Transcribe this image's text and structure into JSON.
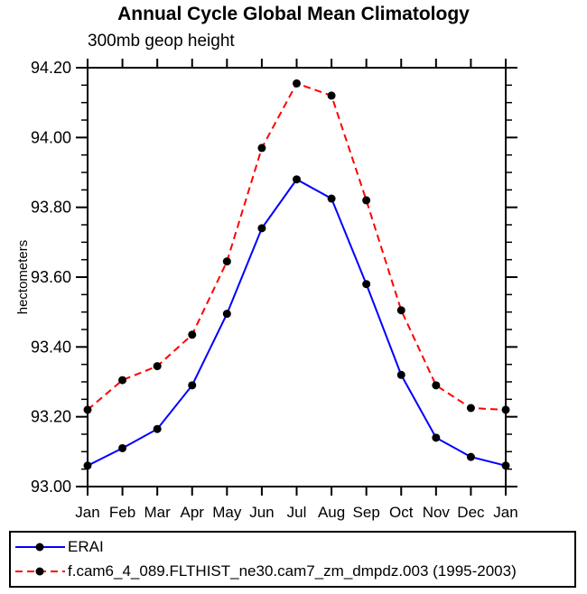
{
  "chart_data": {
    "type": "line",
    "title": "Annual Cycle Global Mean Climatology",
    "subtitle": "300mb geop height",
    "ylabel": "hectometers",
    "xlabel": "",
    "categories": [
      "Jan",
      "Feb",
      "Mar",
      "Apr",
      "May",
      "Jun",
      "Jul",
      "Aug",
      "Sep",
      "Oct",
      "Nov",
      "Dec",
      "Jan"
    ],
    "ylim": [
      93.0,
      94.2
    ],
    "ytick_step": 0.2,
    "yminor_step": 0.05,
    "ytick_labels": [
      "93.00",
      "93.20",
      "93.40",
      "93.60",
      "93.80",
      "94.00",
      "94.20"
    ],
    "grid": false,
    "legend_position": "bottom-box",
    "axis_color": "#000000",
    "marker": {
      "shape": "filled-circle",
      "color": "#000000",
      "radius": 4.5
    },
    "series": [
      {
        "name": "ERAI",
        "color": "#0000ff",
        "line_style": "solid",
        "values": [
          93.06,
          93.11,
          93.165,
          93.29,
          93.495,
          93.74,
          93.88,
          93.825,
          93.58,
          93.32,
          93.14,
          93.085,
          93.06
        ]
      },
      {
        "name": "f.cam6_4_089.FLTHIST_ne30.cam7_zm_dmpdz.003 (1995-2003)",
        "color": "#ff0000",
        "line_style": "dashed",
        "values": [
          93.22,
          93.305,
          93.345,
          93.435,
          93.645,
          93.97,
          94.155,
          94.12,
          93.82,
          93.505,
          93.29,
          93.225,
          93.22
        ]
      }
    ]
  }
}
